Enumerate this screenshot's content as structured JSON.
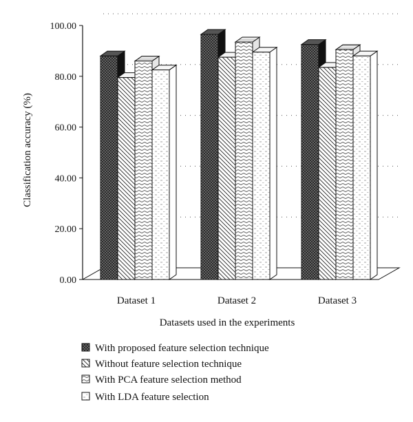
{
  "chart_data": {
    "type": "bar",
    "title": "",
    "xlabel": "Datasets used in the experiments",
    "ylabel": "Classification accuracy (%)",
    "ylim": [
      0,
      100
    ],
    "yticks": [
      "0.00",
      "20.00",
      "40.00",
      "60.00",
      "80.00",
      "100.00"
    ],
    "categories": [
      "Dataset 1",
      "Dataset 2",
      "Dataset 3"
    ],
    "grid": "dotted horizontal",
    "legend_position": "bottom",
    "series": [
      {
        "name": "With proposed feature selection technique",
        "values": [
          88,
          96.5,
          92.5
        ]
      },
      {
        "name": "Without feature selection technique",
        "values": [
          79.5,
          87.5,
          83.5
        ]
      },
      {
        "name": "With PCA feature selection method",
        "values": [
          86,
          93.5,
          90.5
        ]
      },
      {
        "name": "With LDA feature selection",
        "values": [
          82.5,
          89.5,
          88
        ]
      }
    ]
  }
}
